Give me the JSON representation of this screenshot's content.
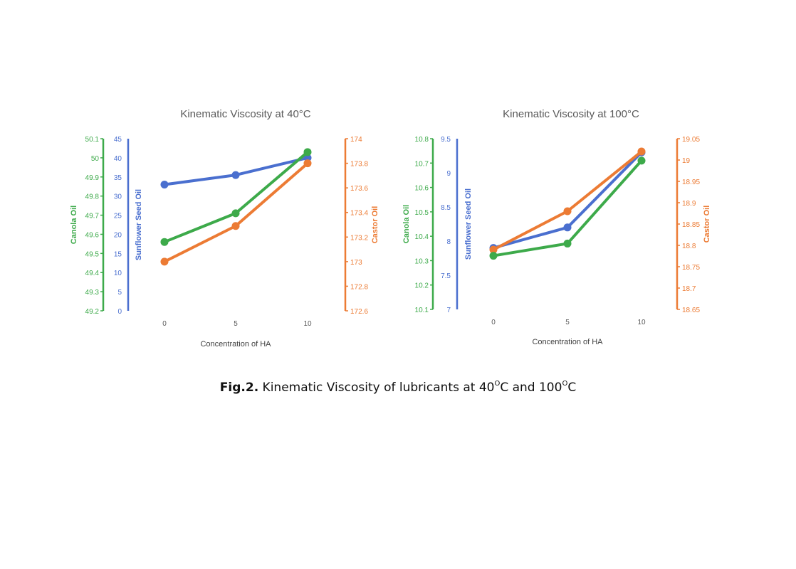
{
  "caption": {
    "label": "Fig.2.",
    "text_before": " Kinematic Viscosity of lubricants at 40",
    "sup1": "O",
    "text_middle": "C and 100",
    "sup2": "O",
    "text_after": "C"
  },
  "colors": {
    "canola": "#3daa4a",
    "sunflower": "#4a6fcf",
    "castor": "#ec7b34"
  },
  "chart_data": [
    {
      "type": "line",
      "title": "Kinematic Viscosity at 40°C",
      "xlabel": "Concentration of HA",
      "categories": [
        "0",
        "5",
        "10"
      ],
      "axes": {
        "canola": {
          "label": "Canola Oil",
          "ticks": [
            "49.2",
            "49.3",
            "49.4",
            "49.5",
            "49.6",
            "49.7",
            "49.8",
            "49.9",
            "50",
            "50.1"
          ],
          "ylim": [
            49.2,
            50.1
          ]
        },
        "sunflower": {
          "label": "Sunflower Seed Oil",
          "ticks": [
            "0",
            "5",
            "10",
            "15",
            "20",
            "25",
            "30",
            "35",
            "40",
            "45"
          ],
          "ylim": [
            0,
            45
          ]
        },
        "castor": {
          "label": "Castor Oil",
          "ticks": [
            "172.6",
            "172.8",
            "173",
            "173.2",
            "173.4",
            "173.6",
            "173.8",
            "174"
          ],
          "ylim": [
            172.6,
            174
          ]
        }
      },
      "series": [
        {
          "name": "Sunflower Seed Oil",
          "axis": "sunflower",
          "values": [
            33,
            35.5,
            40
          ]
        },
        {
          "name": "Castor Oil",
          "axis": "castor",
          "values": [
            173.0,
            173.29,
            173.8
          ]
        },
        {
          "name": "Canola Oil",
          "axis": "canola",
          "values": [
            49.56,
            49.71,
            50.03
          ]
        }
      ]
    },
    {
      "type": "line",
      "title": "Kinematic Viscosity at 100°C",
      "xlabel": "Concentration of HA",
      "categories": [
        "0",
        "5",
        "10"
      ],
      "axes": {
        "canola": {
          "label": "Canola Oil",
          "ticks": [
            "10.1",
            "10.2",
            "10.3",
            "10.4",
            "10.5",
            "10.6",
            "10.7",
            "10.8"
          ],
          "ylim": [
            10.1,
            10.8
          ]
        },
        "sunflower": {
          "label": "Sunflower Seed Oil",
          "ticks": [
            "7",
            "7.5",
            "8",
            "8.5",
            "9",
            "9.5"
          ],
          "ylim": [
            7,
            9.5
          ]
        },
        "castor": {
          "label": "Castor Oil",
          "ticks": [
            "18.65",
            "18.7",
            "18.75",
            "18.8",
            "18.85",
            "18.9",
            "18.95",
            "19",
            "19.05"
          ],
          "ylim": [
            18.65,
            19.05
          ]
        }
      },
      "series": [
        {
          "name": "Sunflower Seed Oil",
          "axis": "sunflower",
          "values": [
            7.9,
            8.2,
            9.3
          ]
        },
        {
          "name": "Castor Oil",
          "axis": "castor",
          "values": [
            18.79,
            18.88,
            19.02
          ]
        },
        {
          "name": "Canola Oil",
          "axis": "canola",
          "values": [
            10.32,
            10.37,
            10.71
          ]
        }
      ]
    }
  ]
}
